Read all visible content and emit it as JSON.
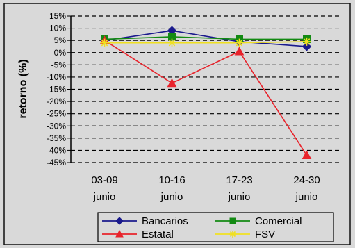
{
  "chart_data": {
    "type": "line",
    "ylabel": "retorno (%)",
    "xlabel": "",
    "ylim": [
      -45,
      15
    ],
    "y_ticks": [
      15,
      10,
      5,
      0,
      -5,
      -10,
      -15,
      -20,
      -25,
      -30,
      -35,
      -40,
      -45
    ],
    "y_tick_labels": [
      "15%",
      "10%",
      "5%",
      "0%",
      "-5%",
      "-10%",
      "-15%",
      "-20%",
      "-25%",
      "-30%",
      "-35%",
      "-40%",
      "-45%"
    ],
    "categories": [
      [
        "03-09",
        "junio"
      ],
      [
        "10-16",
        "junio"
      ],
      [
        "17-23",
        "junio"
      ],
      [
        "24-30",
        "junio"
      ]
    ],
    "grid": true,
    "legend_position": "bottom",
    "series": [
      {
        "name": "Bancarios",
        "values": [
          5,
          9,
          4.5,
          2.5
        ],
        "color": "#1a1a8c",
        "marker": "diamond"
      },
      {
        "name": "Comercial",
        "values": [
          5.5,
          6.5,
          5.5,
          5.5
        ],
        "color": "#138a13",
        "marker": "square"
      },
      {
        "name": "Estatal",
        "values": [
          5,
          -12.5,
          0.5,
          -42
        ],
        "color": "#e8232b",
        "marker": "triangle"
      },
      {
        "name": "FSV",
        "values": [
          4,
          4,
          4,
          4.5
        ],
        "color": "#f0e020",
        "marker": "star"
      }
    ]
  }
}
